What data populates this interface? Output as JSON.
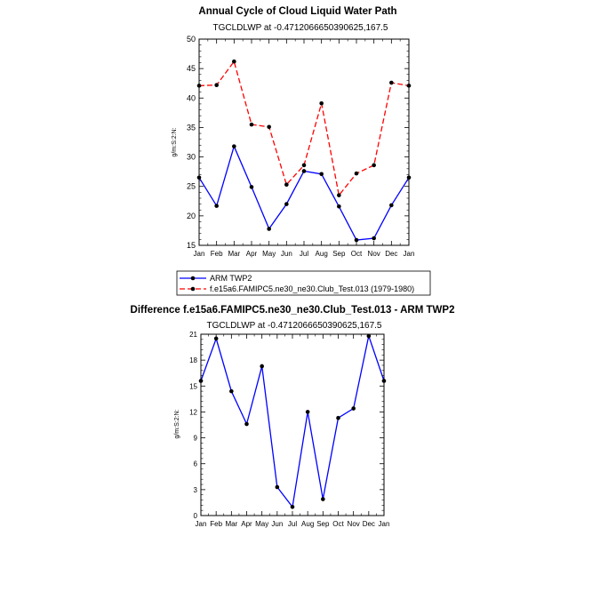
{
  "chart_data": [
    {
      "type": "line",
      "title": "Annual Cycle of Cloud Liquid Water Path",
      "subtitle": "TGCLDLWP at -0.4712066650390625,167.5",
      "ylabel": "g/m:S:2:N:",
      "xlabel": "",
      "categories": [
        "Jan",
        "Feb",
        "Mar",
        "Apr",
        "May",
        "Jun",
        "Jul",
        "Aug",
        "Sep",
        "Oct",
        "Nov",
        "Dec",
        "Jan"
      ],
      "ylim": [
        15,
        50
      ],
      "yticks": [
        "15",
        "20",
        "25",
        "30",
        "35",
        "40",
        "45",
        "50"
      ],
      "series": [
        {
          "name": "ARM TWP2",
          "color": "#0000ff",
          "dash": "solid",
          "values": [
            26.5,
            21.7,
            31.8,
            24.9,
            17.8,
            22.0,
            27.6,
            27.1,
            21.6,
            15.9,
            16.2,
            21.8,
            26.5
          ]
        },
        {
          "name": "f.e15a6.FAMIPC5.ne30_ne30.Club_Test.013 (1979-1980)",
          "color": "#ff0000",
          "dash": "dashed",
          "values": [
            42.1,
            42.2,
            46.2,
            35.5,
            35.1,
            25.3,
            28.6,
            39.1,
            23.5,
            27.2,
            28.6,
            42.6,
            42.1
          ]
        }
      ],
      "legend": "below"
    },
    {
      "type": "line",
      "title": "Difference f.e15a6.FAMIPC5.ne30_ne30.Club_Test.013 - ARM TWP2",
      "subtitle": "TGCLDLWP at -0.4712066650390625,167.5",
      "ylabel": "g/m:S:2:N:",
      "xlabel": "",
      "categories": [
        "Jan",
        "Feb",
        "Mar",
        "Apr",
        "May",
        "Jun",
        "Jul",
        "Aug",
        "Sep",
        "Oct",
        "Nov",
        "Dec",
        "Jan"
      ],
      "ylim": [
        0,
        21
      ],
      "yticks": [
        "0",
        "3",
        "6",
        "9",
        "12",
        "15",
        "18",
        "21"
      ],
      "series": [
        {
          "name": "Difference",
          "color": "#0000ff",
          "dash": "solid",
          "values": [
            15.6,
            20.5,
            14.4,
            10.6,
            17.3,
            3.3,
            1.0,
            12.0,
            1.9,
            11.3,
            12.4,
            20.8,
            15.6
          ]
        }
      ]
    }
  ]
}
